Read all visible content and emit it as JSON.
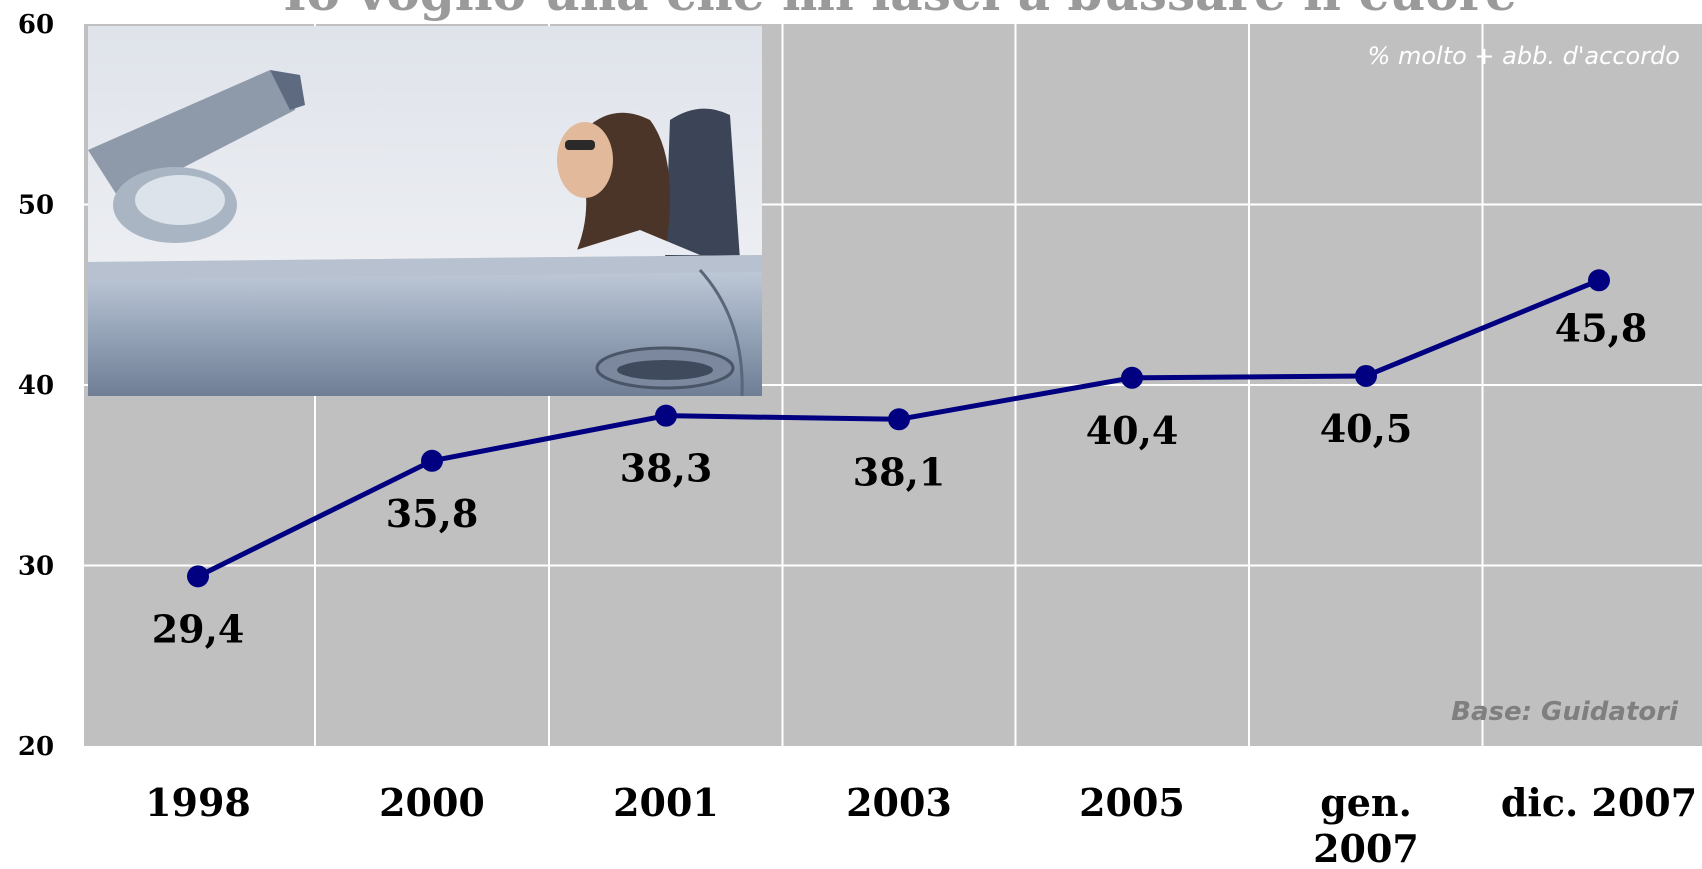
{
  "chart_data": {
    "type": "line",
    "title": "Io voglio una che mi lasci a bussare il cuore",
    "subtitle": "% molto + abb. d'accordo",
    "footnote": "Base: Guidatori",
    "categories": [
      "1998",
      "2000",
      "2001",
      "2003",
      "2005",
      "gen. 2007",
      "dic. 2007"
    ],
    "categories_lines": [
      [
        "1998"
      ],
      [
        "2000"
      ],
      [
        "2001"
      ],
      [
        "2003"
      ],
      [
        "2005"
      ],
      [
        "gen.",
        "2007"
      ],
      [
        "dic. 2007"
      ]
    ],
    "series": [
      {
        "values": [
          29.4,
          35.8,
          38.3,
          38.1,
          40.4,
          40.5,
          45.8
        ]
      }
    ],
    "data_labels": [
      "29,4",
      "35,8",
      "38,3",
      "38,1",
      "40,4",
      "40,5",
      "45,8"
    ],
    "yticks": [
      20,
      30,
      40,
      50,
      60
    ],
    "ylim": [
      20,
      60
    ],
    "xlabel": "",
    "ylabel": "",
    "grid": true,
    "colors": {
      "plot_background": "#c0c0c0",
      "grid": "#ffffff",
      "line": "#000080",
      "text": "#000000",
      "title": "#9a9a9a",
      "subtitle": "#ffffff",
      "footnote": "#7f7f7f"
    }
  },
  "photo": {
    "description_icon": "convertible-car-photo"
  }
}
